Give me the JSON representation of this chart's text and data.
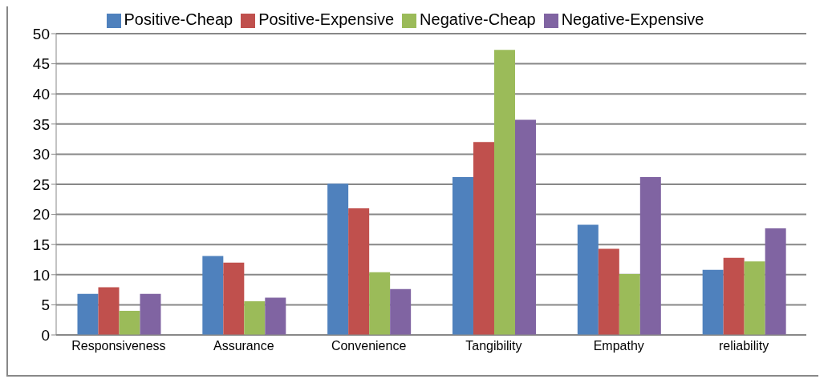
{
  "chart_data": {
    "type": "bar",
    "categories": [
      "Responsiveness",
      "Assurance",
      "Convenience",
      "Tangibility",
      "Empathy",
      "reliability"
    ],
    "series": [
      {
        "name": "Positive-Cheap",
        "color": "#4f81bd",
        "values": [
          6.8,
          13.1,
          25.1,
          26.2,
          18.3,
          10.8
        ]
      },
      {
        "name": "Positive-Expensive",
        "color": "#c0504d",
        "values": [
          7.9,
          12.0,
          21.0,
          32.0,
          14.3,
          12.8
        ]
      },
      {
        "name": "Negative-Cheap",
        "color": "#9bbb59",
        "values": [
          4.0,
          5.6,
          10.4,
          47.3,
          10.1,
          12.2
        ]
      },
      {
        "name": "Negative-Expensive",
        "color": "#8064a2",
        "values": [
          6.8,
          6.2,
          7.6,
          35.7,
          26.2,
          17.7
        ]
      }
    ],
    "ylim": [
      0,
      50
    ],
    "yticks": [
      0,
      5,
      10,
      15,
      20,
      25,
      30,
      35,
      40,
      45,
      50
    ],
    "grid": "y",
    "legend": "top"
  }
}
